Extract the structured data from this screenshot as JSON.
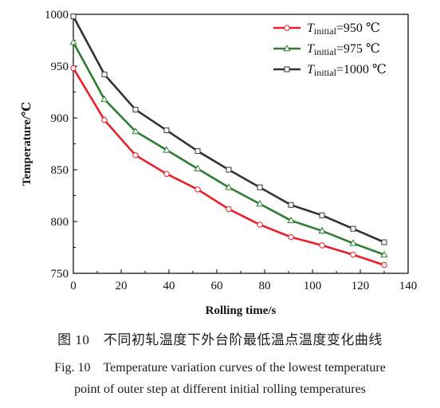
{
  "chart_data": {
    "type": "line",
    "title": "",
    "xlabel": "Rolling time/s",
    "ylabel": "Temperature/℃",
    "xlim": [
      0,
      140
    ],
    "ylim": [
      750,
      1000
    ],
    "xticks": [
      0,
      20,
      40,
      60,
      80,
      100,
      120,
      140
    ],
    "yticks": [
      750,
      800,
      850,
      900,
      950,
      1000
    ],
    "grid": false,
    "legend_position": "top-right",
    "x": [
      0,
      13,
      26,
      39,
      52,
      65,
      78,
      91,
      104,
      117,
      130
    ],
    "series": [
      {
        "name": "T_initial=950 ℃",
        "legend_symbol": "T",
        "legend_subscript": "initial",
        "legend_value": "=950 ℃",
        "color": "#e8202a",
        "marker": "circle",
        "values": [
          948,
          898,
          864,
          846,
          831,
          812,
          797,
          785,
          777,
          768,
          758
        ]
      },
      {
        "name": "T_initial=975 ℃",
        "legend_symbol": "T",
        "legend_subscript": "initial",
        "legend_value": "=975 ℃",
        "color": "#2e7d32",
        "marker": "triangle",
        "values": [
          973,
          918,
          887,
          869,
          851,
          833,
          817,
          801,
          791,
          779,
          768
        ]
      },
      {
        "name": "T_initial=1000 ℃",
        "legend_symbol": "T",
        "legend_subscript": "initial",
        "legend_value": "=1000 ℃",
        "color": "#333333",
        "marker": "square",
        "values": [
          998,
          942,
          908,
          888,
          868,
          850,
          833,
          816,
          806,
          793,
          780
        ]
      }
    ]
  },
  "caption": {
    "zh": "图 10　不同初轧温度下外台阶最低温点温度变化曲线",
    "en_line1": "Fig. 10　Temperature variation curves of the lowest temperature",
    "en_line2": "point of outer step at different initial rolling temperatures"
  }
}
